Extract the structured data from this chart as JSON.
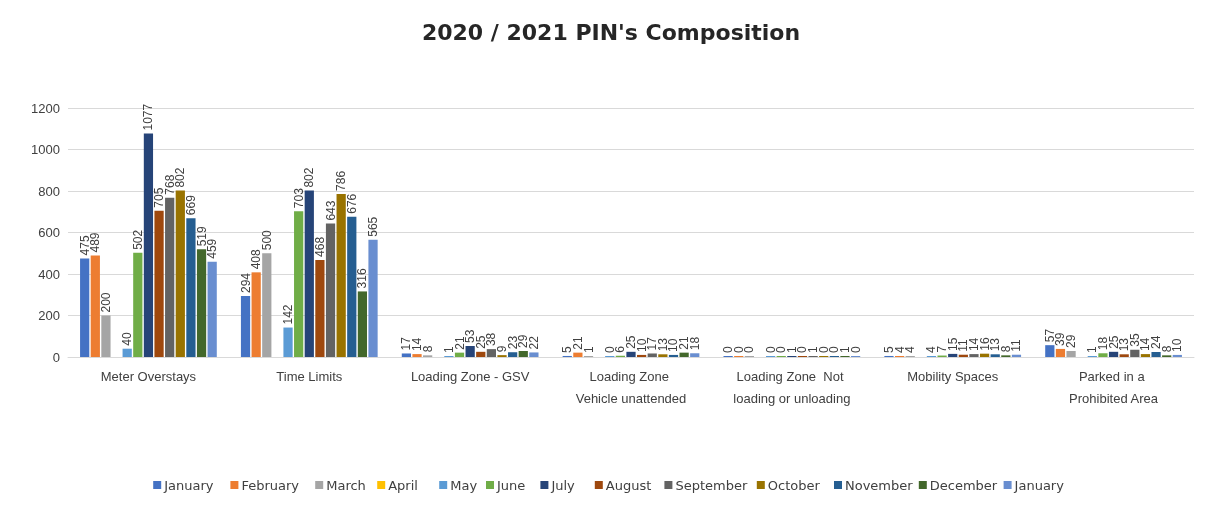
{
  "chart_data": {
    "type": "bar",
    "title": "2020 / 2021 PIN's Composition",
    "categories": [
      "Meter Overstays",
      "Time Limits",
      "Loading Zone - GSV",
      "Loading Zone Vehicle unattended",
      "Loading Zone  Not loading or unloading",
      "Mobility Spaces",
      "Parked in a Prohibited Area"
    ],
    "series": [
      {
        "name": "January",
        "color": "#4472c4",
        "values": [
          475,
          294,
          17,
          5,
          0,
          5,
          57
        ]
      },
      {
        "name": "February",
        "color": "#ed7d31",
        "values": [
          489,
          408,
          14,
          21,
          0,
          4,
          39
        ]
      },
      {
        "name": "March",
        "color": "#a5a5a5",
        "values": [
          200,
          500,
          8,
          1,
          0,
          4,
          29
        ]
      },
      {
        "name": "April",
        "color": "#ffc000",
        "values": [
          null,
          null,
          null,
          null,
          null,
          null,
          null
        ]
      },
      {
        "name": "May",
        "color": "#5b9bd5",
        "values": [
          40,
          142,
          1,
          0,
          0,
          4,
          1
        ]
      },
      {
        "name": "June",
        "color": "#70ad47",
        "values": [
          502,
          703,
          21,
          6,
          0,
          7,
          18
        ]
      },
      {
        "name": "July",
        "color": "#264478",
        "values": [
          1077,
          802,
          53,
          25,
          1,
          15,
          25
        ]
      },
      {
        "name": "August",
        "color": "#9e480e",
        "values": [
          705,
          468,
          25,
          10,
          0,
          11,
          13
        ]
      },
      {
        "name": "September",
        "color": "#636363",
        "values": [
          768,
          643,
          38,
          17,
          1,
          14,
          35
        ]
      },
      {
        "name": "October",
        "color": "#997300",
        "values": [
          802,
          786,
          9,
          13,
          0,
          16,
          14
        ]
      },
      {
        "name": "November",
        "color": "#255e91",
        "values": [
          669,
          676,
          23,
          10,
          0,
          13,
          24
        ]
      },
      {
        "name": "December",
        "color": "#43682b",
        "values": [
          519,
          316,
          29,
          21,
          1,
          8,
          8
        ]
      },
      {
        "name": "January",
        "color": "#698ed0",
        "values": [
          459,
          565,
          22,
          18,
          0,
          11,
          10
        ]
      }
    ],
    "ylim": [
      0,
      1200
    ],
    "yticks": [
      0,
      200,
      400,
      600,
      800,
      1000,
      1200
    ],
    "grid": "y",
    "legend": "bottom",
    "data_labels": true
  }
}
